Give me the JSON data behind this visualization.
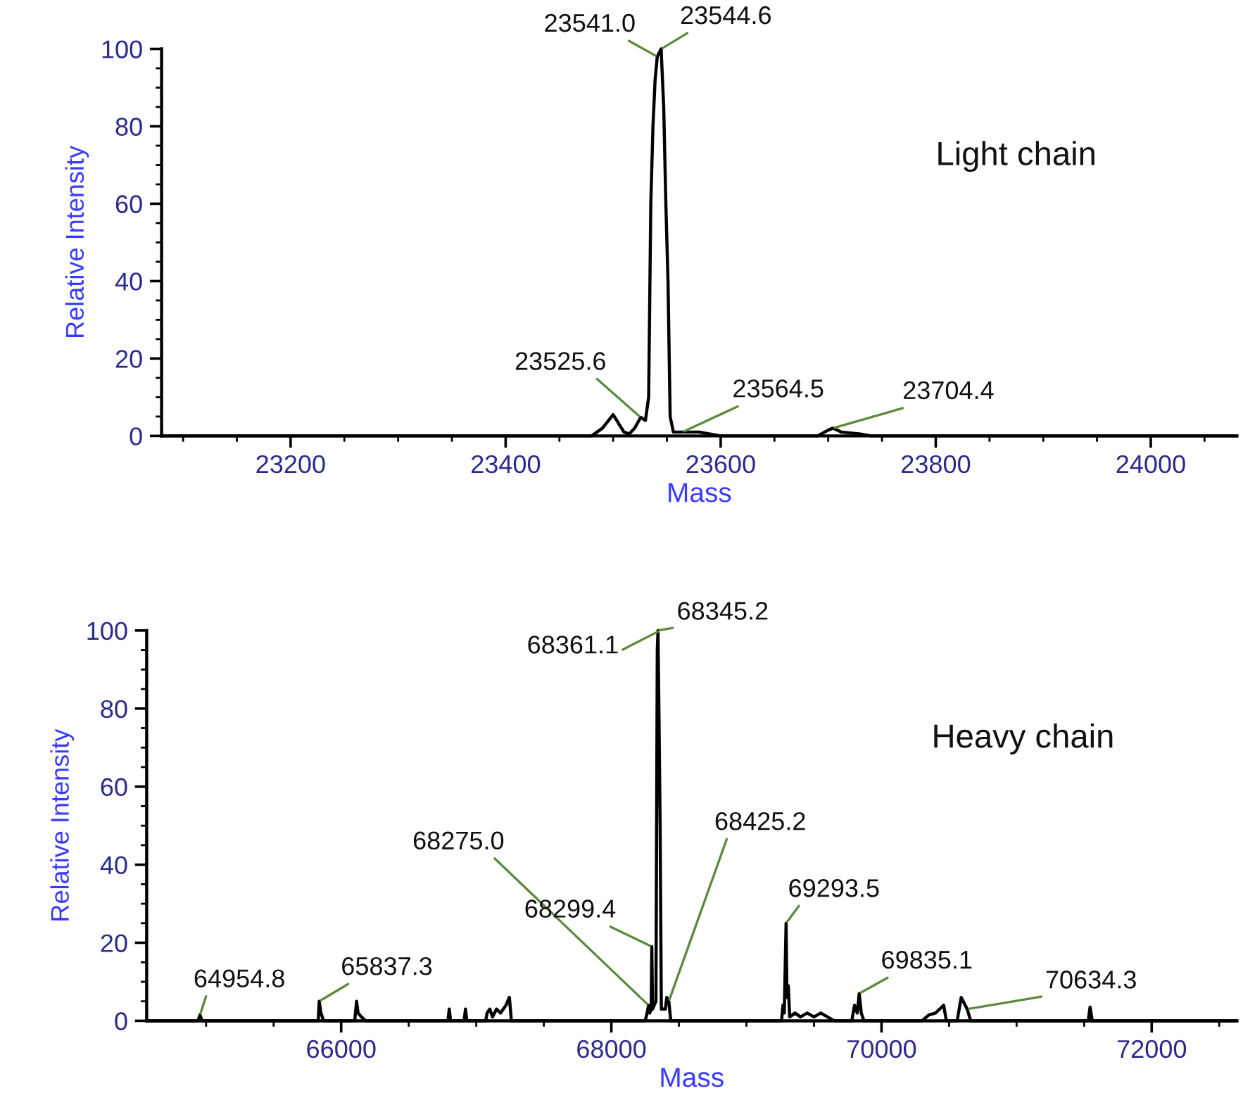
{
  "chart_data": [
    {
      "type": "line",
      "xlabel": "Mass",
      "ylabel": "Relative Intensity",
      "xlim": [
        23080,
        24080
      ],
      "ylim": [
        0,
        100
      ],
      "xticks": [
        23200,
        23400,
        23600,
        23800,
        24000
      ],
      "yticks": [
        0,
        20,
        40,
        60,
        80,
        100
      ],
      "grid": false,
      "legend": false,
      "marker": "none",
      "line_style": "solid",
      "series": [
        {
          "color": "#000000",
          "x": [
            23080,
            23480,
            23490,
            23500,
            23510,
            23515,
            23520,
            23525.6,
            23530,
            23533,
            23535,
            23537,
            23539,
            23541,
            23544.6,
            23547,
            23549,
            23551,
            23553,
            23556,
            23564.5,
            23580,
            23590,
            23600,
            23690,
            23700,
            23704.4,
            23712,
            23730,
            23740,
            24080
          ],
          "values": [
            0,
            0,
            2,
            5.5,
            1,
            0.5,
            2,
            4.8,
            4,
            10,
            60,
            80,
            92,
            98,
            100,
            85,
            60,
            40,
            5,
            1,
            1,
            1,
            0.5,
            0,
            0,
            1.5,
            2,
            1,
            0.5,
            0,
            0
          ]
        }
      ],
      "annotations": [
        {
          "text": "23541.0",
          "x": 23541.0,
          "y": 98
        },
        {
          "text": "23544.6",
          "x": 23544.6,
          "y": 100
        },
        {
          "text": "23525.6",
          "x": 23525.6,
          "y": 4.8
        },
        {
          "text": "23564.5",
          "x": 23564.5,
          "y": 1
        },
        {
          "text": "23704.4",
          "x": 23704.4,
          "y": 2
        },
        "Light chain"
      ]
    },
    {
      "type": "line",
      "xlabel": "Mass",
      "ylabel": "Relative Intensity",
      "xlim": [
        64560,
        72630
      ],
      "ylim": [
        0,
        100
      ],
      "xticks": [
        66000,
        68000,
        70000,
        72000
      ],
      "yticks": [
        0,
        20,
        40,
        60,
        80,
        100
      ],
      "grid": false,
      "legend": false,
      "marker": "none",
      "line_style": "solid",
      "series": [
        {
          "color": "#000000",
          "x": [
            64560,
            64940,
            64954.8,
            64970,
            65830,
            65837.3,
            65850,
            65870,
            66100,
            66114,
            66125,
            66150,
            66180,
            66790,
            66800,
            66810,
            66910,
            66920,
            66930,
            67070,
            67080,
            67100,
            67120,
            67150,
            67180,
            67220,
            67245,
            67260,
            68250,
            68265,
            68275,
            68285,
            68295,
            68299.4,
            68305,
            68330,
            68336,
            68340,
            68345.2,
            68352,
            68361.1,
            68370,
            68400,
            68410,
            68425.2,
            68440,
            69260,
            69270,
            69280,
            69293.5,
            69300,
            69310,
            69320,
            69360,
            69400,
            69450,
            69500,
            69550,
            69600,
            69650,
            69780,
            69800,
            69820,
            69835.1,
            69850,
            69870,
            70300,
            70350,
            70400,
            70460,
            70480,
            70560,
            70590,
            70634.3,
            70660,
            71530,
            71544,
            71560,
            72630
          ],
          "values": [
            0,
            0,
            1.5,
            0,
            0,
            5,
            2,
            0,
            0,
            5,
            2,
            1,
            0,
            0,
            3,
            0,
            0,
            3,
            0,
            0,
            2,
            3,
            1,
            3,
            2,
            4,
            6,
            0,
            0,
            2,
            4,
            2,
            3,
            19,
            3,
            5,
            60,
            95,
            100,
            80,
            50,
            3,
            3,
            6,
            5,
            0,
            0,
            4,
            2,
            25,
            6,
            9,
            1,
            2,
            1,
            2,
            1,
            2,
            1,
            0,
            0,
            4,
            2,
            7,
            2,
            0,
            0,
            1.5,
            2,
            4,
            0,
            0,
            6,
            3,
            0,
            0,
            3.5,
            0,
            0
          ]
        }
      ],
      "annotations": [
        {
          "text": "68361.1",
          "x": 68361.1,
          "y": 100
        },
        {
          "text": "68345.2",
          "x": 68345.2,
          "y": 100
        },
        {
          "text": "68275.0",
          "x": 68275.0,
          "y": 4
        },
        {
          "text": "68299.4",
          "x": 68299.4,
          "y": 19
        },
        {
          "text": "68425.2",
          "x": 68425.2,
          "y": 5
        },
        {
          "text": "69293.5",
          "x": 69293.5,
          "y": 25
        },
        {
          "text": "69835.1",
          "x": 69835.1,
          "y": 7
        },
        {
          "text": "70634.3",
          "x": 70634.3,
          "y": 3
        },
        {
          "text": "64954.8",
          "x": 64954.8,
          "y": 1.5
        },
        {
          "text": "65837.3",
          "x": 65837.3,
          "y": 5
        },
        "Heavy chain"
      ]
    }
  ]
}
